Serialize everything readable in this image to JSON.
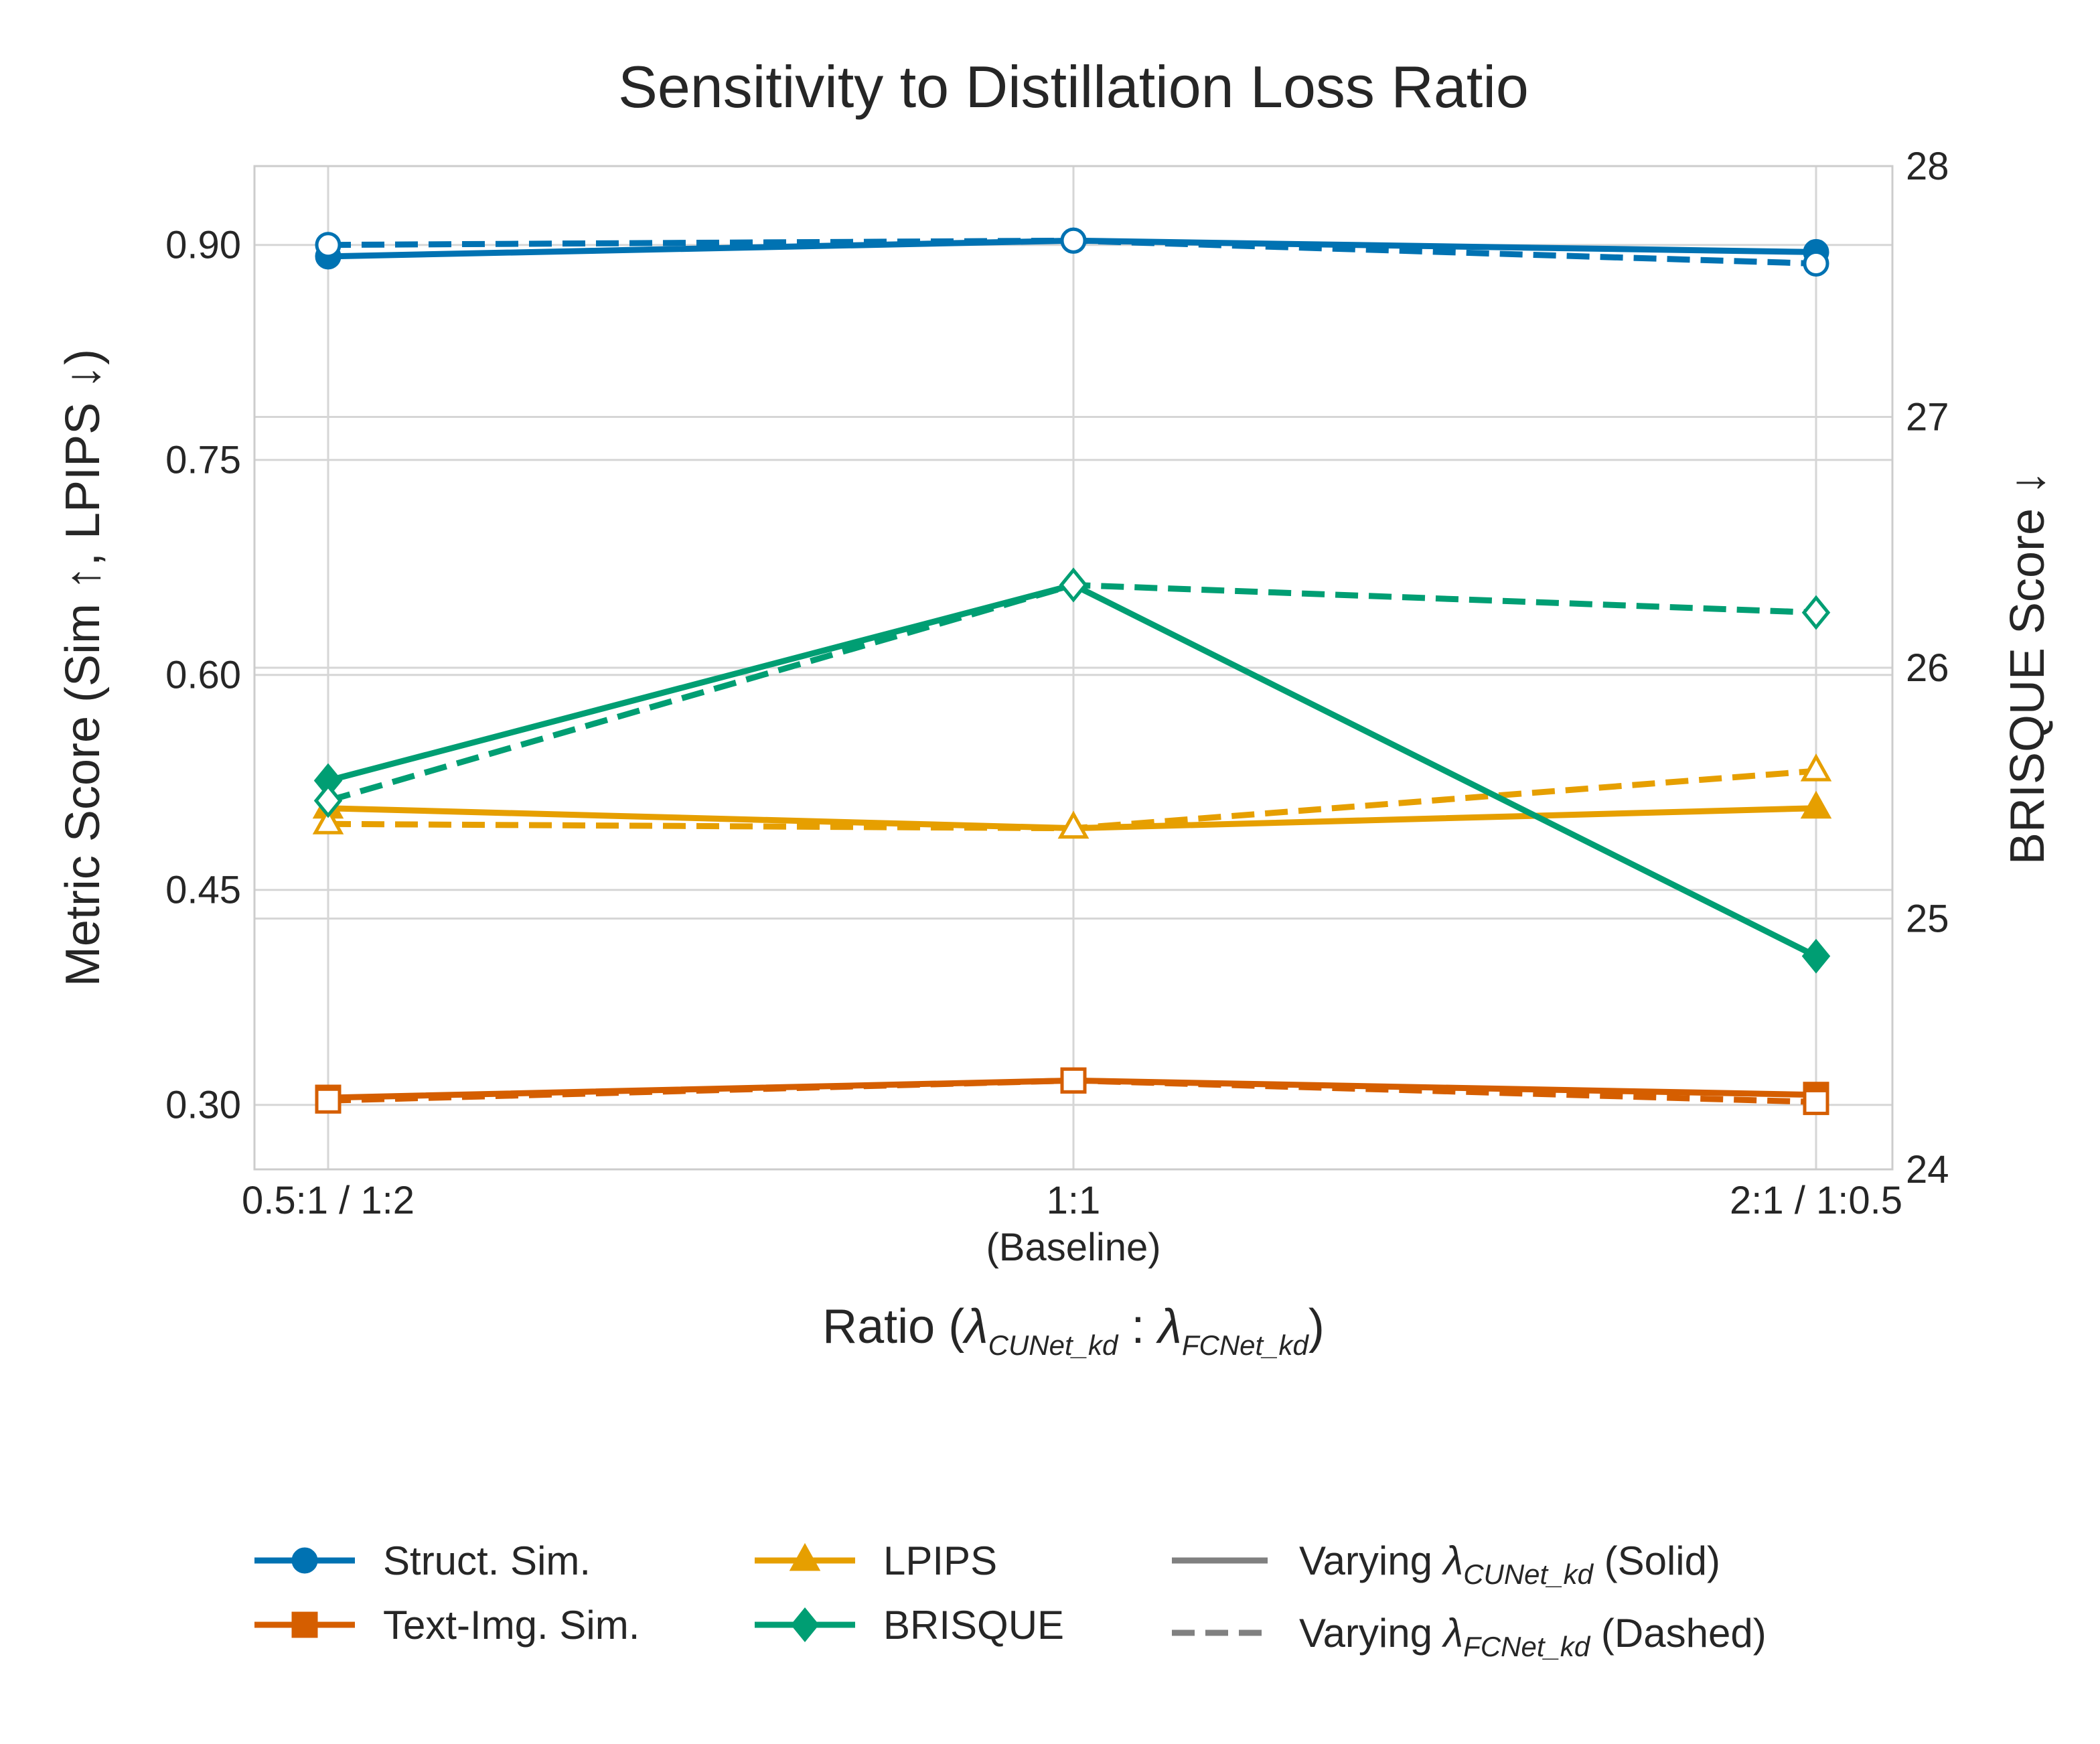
{
  "chart_data": {
    "type": "line",
    "title": "Sensitivity to Distillation Loss Ratio",
    "xlabel": {
      "prefix": "Ratio (",
      "lambda1_sub": "CUNet_kd",
      "separator": " : ",
      "lambda2_sub": "FCNet_kd",
      "suffix": ")"
    },
    "ylabel_left": "Metric Score (Sim ↑, LPIPS ↓)",
    "ylabel_right": "BRISQUE Score ↓",
    "categories": [
      "0.5:1 / 1:2",
      "1:1",
      "2:1 / 1:0.5"
    ],
    "category_sublabels": [
      "",
      "(Baseline)",
      ""
    ],
    "ylim_left": [
      0.255,
      0.955
    ],
    "ylim_right": [
      24,
      28
    ],
    "yticks_left": [
      "0.30",
      "0.45",
      "0.60",
      "0.75",
      "0.90"
    ],
    "yticks_right": [
      "24",
      "25",
      "26",
      "27",
      "28"
    ],
    "grid": true,
    "series": [
      {
        "name": "Struct. Sim.",
        "axis": "left",
        "color": "#0072B2",
        "marker": "circle",
        "solid": [
          0.892,
          0.903,
          0.895
        ],
        "dashed": [
          0.9,
          0.903,
          0.887
        ]
      },
      {
        "name": "Text-Img. Sim.",
        "axis": "left",
        "color": "#D55E00",
        "marker": "square",
        "solid": [
          0.305,
          0.317,
          0.307
        ],
        "dashed": [
          0.303,
          0.317,
          0.302
        ]
      },
      {
        "name": "LPIPS",
        "axis": "left",
        "color": "#E69F00",
        "marker": "triangle",
        "solid": [
          0.507,
          0.493,
          0.507
        ],
        "dashed": [
          0.496,
          0.493,
          0.533
        ]
      },
      {
        "name": "BRISQUE",
        "axis": "right",
        "color": "#009E73",
        "marker": "diamond",
        "solid": [
          25.55,
          26.33,
          24.85
        ],
        "dashed": [
          25.47,
          26.33,
          26.22
        ]
      }
    ],
    "legend": {
      "placement": "bottom",
      "entries": [
        "Struct. Sim.",
        "Text-Img. Sim.",
        "LPIPS",
        "BRISQUE"
      ],
      "style_solid": {
        "prefix": "Varying ",
        "sub": "CUNet_kd",
        "suffix": " (Solid)"
      },
      "style_dashed": {
        "prefix": "Varying ",
        "sub": "FCNet_kd",
        "suffix": " (Dashed)"
      },
      "style_color": "#808080"
    }
  }
}
